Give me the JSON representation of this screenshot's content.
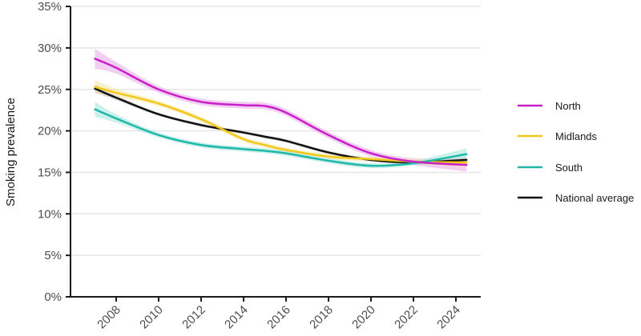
{
  "chart_data": {
    "type": "line",
    "title": "",
    "xlabel": "",
    "ylabel": "Smoking prevalence",
    "ylim": [
      0,
      35
    ],
    "xlim": [
      2006,
      2025.5
    ],
    "y_ticks": [
      "0%",
      "5%",
      "10%",
      "15%",
      "20%",
      "25%",
      "30%",
      "35%"
    ],
    "y_tick_values": [
      0,
      5,
      10,
      15,
      20,
      25,
      30,
      35
    ],
    "x_ticks": [
      "2008",
      "2010",
      "2012",
      "2014",
      "2016",
      "2018",
      "2020",
      "2022",
      "2024"
    ],
    "x_tick_values": [
      2008,
      2010,
      2012,
      2014,
      2016,
      2018,
      2020,
      2022,
      2024
    ],
    "grid": "horizontal",
    "legend_position": "right",
    "x": [
      2007,
      2008,
      2010,
      2012,
      2014,
      2015,
      2016,
      2018,
      2020,
      2022,
      2024.5
    ],
    "series": [
      {
        "name": "North",
        "color": "#c81fc8",
        "band_color": "#e9a6e9",
        "values": [
          28.7,
          27.6,
          25.0,
          23.5,
          23.1,
          23.0,
          22.2,
          19.5,
          17.3,
          16.3,
          15.9
        ],
        "ci_halfwidth": [
          1.2,
          0.7,
          0.4,
          0.4,
          0.4,
          0.4,
          0.4,
          0.4,
          0.4,
          0.4,
          0.8
        ]
      },
      {
        "name": "Midlands",
        "color": "#f2c81e",
        "band_color": "#f7e59a",
        "values": [
          25.3,
          24.6,
          23.3,
          21.4,
          19.0,
          18.3,
          17.7,
          16.9,
          16.6,
          16.3,
          16.2
        ],
        "ci_halfwidth": [
          0.8,
          0.5,
          0.3,
          0.3,
          0.3,
          0.3,
          0.3,
          0.3,
          0.3,
          0.3,
          0.5
        ]
      },
      {
        "name": "South",
        "color": "#1fb8a8",
        "band_color": "#a3e3dc",
        "values": [
          22.6,
          21.5,
          19.5,
          18.3,
          17.8,
          17.6,
          17.3,
          16.4,
          15.8,
          16.1,
          17.2
        ],
        "ci_halfwidth": [
          0.9,
          0.5,
          0.3,
          0.3,
          0.3,
          0.3,
          0.3,
          0.3,
          0.3,
          0.3,
          0.7
        ]
      },
      {
        "name": "National average",
        "color": "#111111",
        "band_color": "#c8c8c8",
        "values": [
          25.1,
          24.0,
          22.0,
          20.7,
          19.8,
          19.3,
          18.8,
          17.4,
          16.5,
          16.2,
          16.5
        ],
        "ci_halfwidth": [
          0.5,
          0.3,
          0.2,
          0.2,
          0.2,
          0.2,
          0.2,
          0.2,
          0.2,
          0.2,
          0.3
        ]
      }
    ]
  }
}
